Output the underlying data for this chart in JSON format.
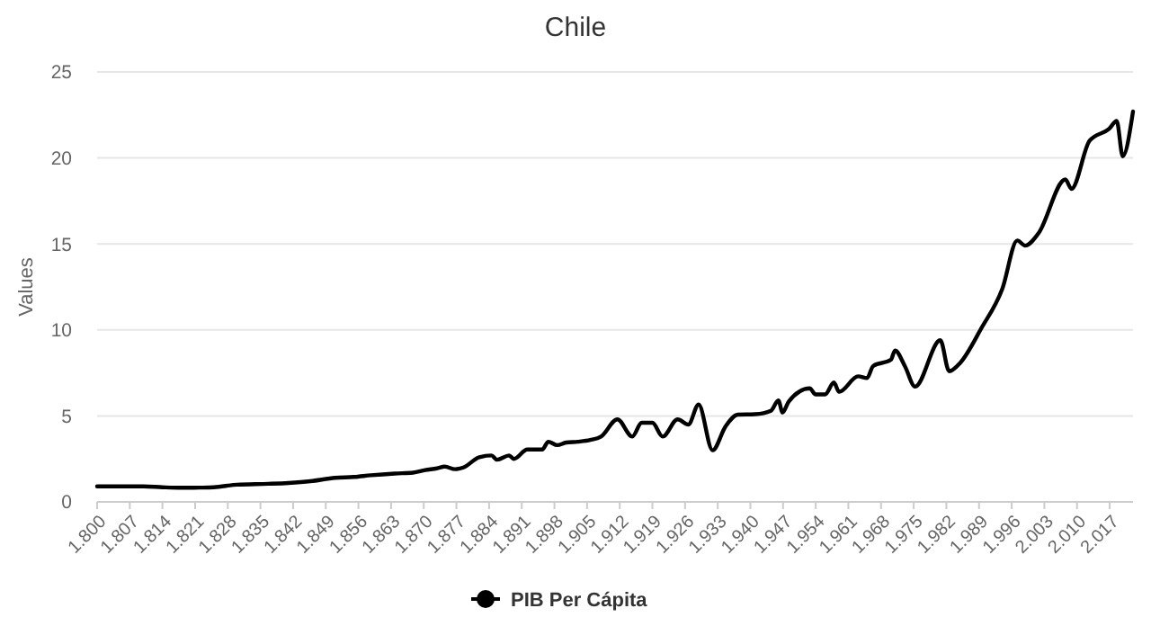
{
  "chart_data": {
    "type": "line",
    "title": "Chile",
    "ylabel": "Values",
    "x": [
      1800,
      1805,
      1810,
      1814,
      1818,
      1822,
      1825,
      1830,
      1836.7,
      1841,
      1845.7,
      1851,
      1855,
      1858.7,
      1863.8,
      1867.7,
      1870.3,
      1872.8,
      1874.5,
      1876.7,
      1878.5,
      1881.9,
      1884.5,
      1885.7,
      1888.3,
      1889.3,
      1892.2,
      1895.4,
      1896.7,
      1898.6,
      1900.5,
      1903,
      1905.7,
      1908,
      1911.5,
      1914.7,
      1916.7,
      1919,
      1921.2,
      1924.4,
      1926.7,
      1928.9,
      1931.9,
      1934.7,
      1937.3,
      1941,
      1944.4,
      1946,
      1946.9,
      1948.2,
      1952.7,
      1954,
      1956,
      1957.9,
      1959,
      1963.1,
      1965,
      1966.3,
      1970.1,
      1971,
      1973.1,
      1975.3,
      1980.7,
      1982.6,
      1985,
      1989.5,
      1994,
      1997.2,
      1998.9,
      2001.7,
      2007.5,
      2008.8,
      2012.7,
      2016.9,
      2018.5,
      2019.8,
      2022
    ],
    "series": [
      {
        "name": "PIB Per Cápita",
        "color": "#000000",
        "values": [
          0.9,
          0.9,
          0.9,
          0.85,
          0.82,
          0.83,
          0.85,
          1.0,
          1.05,
          1.1,
          1.2,
          1.4,
          1.45,
          1.55,
          1.65,
          1.7,
          1.85,
          1.95,
          2.05,
          1.9,
          2.0,
          2.6,
          2.7,
          2.45,
          2.7,
          2.5,
          3.05,
          3.05,
          3.5,
          3.3,
          3.45,
          3.5,
          3.6,
          3.8,
          4.8,
          3.8,
          4.6,
          4.6,
          3.8,
          4.8,
          4.5,
          5.66,
          3.0,
          4.4,
          5.07,
          5.1,
          5.3,
          5.9,
          5.2,
          5.83,
          6.6,
          6.25,
          6.25,
          6.94,
          6.4,
          7.3,
          7.2,
          7.9,
          8.26,
          8.8,
          7.9,
          6.7,
          9.4,
          7.6,
          8.1,
          10.1,
          12.4,
          15.2,
          14.9,
          15.6,
          18.75,
          18.2,
          21.0,
          21.7,
          22.15,
          20.1,
          22.7
        ]
      }
    ],
    "xlim": [
      1800,
      2022
    ],
    "xticks": [
      {
        "value": 1800,
        "label": "1.800"
      },
      {
        "value": 1807,
        "label": "1.807"
      },
      {
        "value": 1814,
        "label": "1.814"
      },
      {
        "value": 1821,
        "label": "1.821"
      },
      {
        "value": 1828,
        "label": "1.828"
      },
      {
        "value": 1835,
        "label": "1.835"
      },
      {
        "value": 1842,
        "label": "1.842"
      },
      {
        "value": 1849,
        "label": "1.849"
      },
      {
        "value": 1856,
        "label": "1.856"
      },
      {
        "value": 1863,
        "label": "1.863"
      },
      {
        "value": 1870,
        "label": "1.870"
      },
      {
        "value": 1877,
        "label": "1.877"
      },
      {
        "value": 1884,
        "label": "1.884"
      },
      {
        "value": 1891,
        "label": "1.891"
      },
      {
        "value": 1898,
        "label": "1.898"
      },
      {
        "value": 1905,
        "label": "1.905"
      },
      {
        "value": 1912,
        "label": "1.912"
      },
      {
        "value": 1919,
        "label": "1.919"
      },
      {
        "value": 1926,
        "label": "1.926"
      },
      {
        "value": 1933,
        "label": "1.933"
      },
      {
        "value": 1940,
        "label": "1.940"
      },
      {
        "value": 1947,
        "label": "1.947"
      },
      {
        "value": 1954,
        "label": "1.954"
      },
      {
        "value": 1961,
        "label": "1.961"
      },
      {
        "value": 1968,
        "label": "1.968"
      },
      {
        "value": 1975,
        "label": "1.975"
      },
      {
        "value": 1982,
        "label": "1.982"
      },
      {
        "value": 1989,
        "label": "1.989"
      },
      {
        "value": 1996,
        "label": "1.996"
      },
      {
        "value": 2003,
        "label": "2.003"
      },
      {
        "value": 2010,
        "label": "2.010"
      },
      {
        "value": 2017,
        "label": "2.017"
      }
    ],
    "ylim": [
      0,
      25
    ],
    "yticks": [
      0,
      5,
      10,
      15,
      20,
      25
    ],
    "grid": "y",
    "legend": "bottom"
  }
}
